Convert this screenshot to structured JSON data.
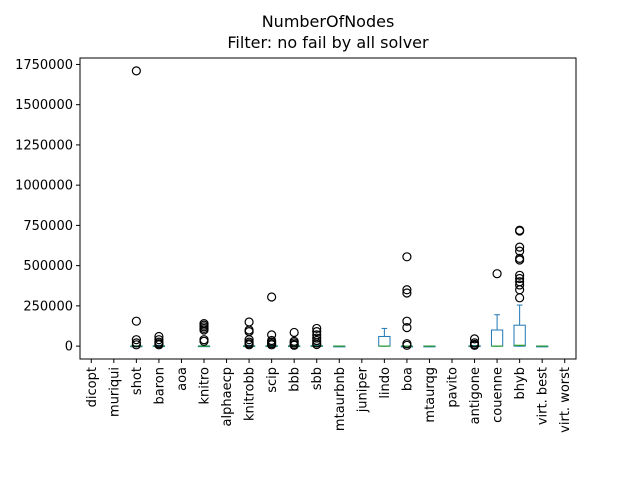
{
  "chart_data": {
    "type": "box",
    "title": "NumberOfNodes",
    "subtitle": "Filter: no fail by all solver",
    "xlabel": "",
    "ylabel": "",
    "ylim": [
      -80000,
      1790000
    ],
    "yticks": [
      0,
      250000,
      500000,
      750000,
      1000000,
      1250000,
      1500000,
      1750000
    ],
    "ytick_labels": [
      "0",
      "250000",
      "500000",
      "750000",
      "1000000",
      "1250000",
      "1500000",
      "1750000"
    ],
    "grid": false,
    "legend": "none",
    "box_color": "#1f77b4",
    "median_color": "#2ca02c",
    "categories": [
      "dicopt",
      "muriqui",
      "shot",
      "baron",
      "aoa",
      "knitro",
      "alphaecp",
      "knitrobb",
      "scip",
      "bbb",
      "sbb",
      "mtaurbnb",
      "juniper",
      "lindo",
      "boa",
      "mtaurqg",
      "pavito",
      "antigone",
      "couenne",
      "bhyb",
      "virt. best",
      "virt. worst"
    ],
    "boxes": [
      null,
      null,
      {
        "q1": 0,
        "median": 0,
        "q3": 1000,
        "whislo": 0,
        "whishi": 2500,
        "fliers": [
          1710000,
          155000,
          40000,
          20000,
          8000
        ]
      },
      {
        "q1": 0,
        "median": 0,
        "q3": 2000,
        "whislo": 0,
        "whishi": 5000,
        "fliers": [
          60000,
          40000,
          25000,
          15000,
          8000
        ]
      },
      null,
      {
        "q1": 0,
        "median": 0,
        "q3": 1500,
        "whislo": 0,
        "whishi": 3000,
        "fliers": [
          140000,
          130000,
          120000,
          110000,
          100000,
          40000,
          30000
        ]
      },
      null,
      {
        "q1": 0,
        "median": 0,
        "q3": 2000,
        "whislo": 0,
        "whishi": 5000,
        "fliers": [
          150000,
          100000,
          90000,
          40000,
          25000,
          15000,
          8000
        ]
      },
      {
        "q1": 0,
        "median": 0,
        "q3": 2000,
        "whislo": 0,
        "whishi": 5000,
        "fliers": [
          305000,
          70000,
          35000,
          25000,
          15000,
          8000
        ]
      },
      {
        "q1": 0,
        "median": 0,
        "q3": 2000,
        "whislo": 0,
        "whishi": 5000,
        "fliers": [
          85000,
          30000,
          20000,
          10000,
          5000
        ]
      },
      {
        "q1": 0,
        "median": 0,
        "q3": 3000,
        "whislo": 0,
        "whishi": 7000,
        "fliers": [
          110000,
          90000,
          70000,
          50000,
          35000,
          20000,
          10000
        ]
      },
      {
        "q1": 0,
        "median": 0,
        "q3": 500,
        "whislo": 0,
        "whishi": 1000,
        "fliers": []
      },
      null,
      {
        "q1": 0,
        "median": 0,
        "q3": 60000,
        "whislo": 0,
        "whishi": 110000,
        "fliers": []
      },
      {
        "q1": 0,
        "median": 0,
        "q3": 0,
        "whislo": 0,
        "whishi": 0,
        "fliers": [
          555000,
          350000,
          330000,
          155000,
          115000,
          15000,
          5000
        ]
      },
      {
        "q1": 0,
        "median": 0,
        "q3": 500,
        "whislo": 0,
        "whishi": 1000,
        "fliers": []
      },
      null,
      {
        "q1": 0,
        "median": 0,
        "q3": 2000,
        "whislo": 0,
        "whishi": 4000,
        "fliers": [
          45000,
          20000,
          10000,
          5000
        ]
      },
      {
        "q1": 0,
        "median": 0,
        "q3": 100000,
        "whislo": 0,
        "whishi": 195000,
        "fliers": [
          450000
        ]
      },
      {
        "q1": 0,
        "median": 5000,
        "q3": 130000,
        "whislo": 0,
        "whishi": 255000,
        "fliers": [
          720000,
          715000,
          615000,
          590000,
          545000,
          535000,
          440000,
          420000,
          400000,
          380000,
          350000,
          300000
        ]
      },
      {
        "q1": 0,
        "median": 0,
        "q3": 500,
        "whislo": 0,
        "whishi": 1000,
        "fliers": []
      },
      null
    ]
  }
}
